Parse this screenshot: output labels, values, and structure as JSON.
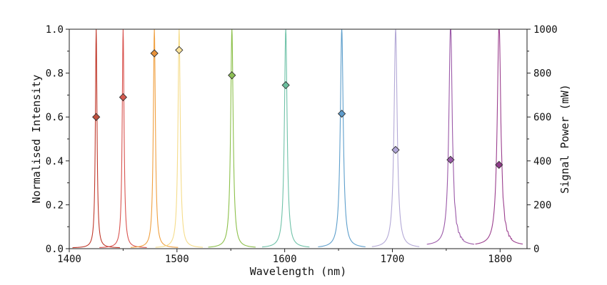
{
  "chart_data": {
    "type": "line",
    "title": "",
    "xlabel": "Wavelength (nm)",
    "ylabel": "Normalised Intensity",
    "y2label": "Signal Power (mW)",
    "xlim": [
      1400,
      1825
    ],
    "ylim": [
      0,
      1.0
    ],
    "y2lim": [
      0,
      1000
    ],
    "xticks": [
      1400,
      1500,
      1600,
      1700,
      1800
    ],
    "yticks": [
      "0.0",
      "0.2",
      "0.4",
      "0.6",
      "0.8",
      "1.0"
    ],
    "y2ticks": [
      "0",
      "200",
      "400",
      "600",
      "800",
      "1000"
    ],
    "grid": false,
    "legend": "none",
    "series": [
      {
        "peak_nm": 1425,
        "power_mW": 600,
        "color": "#c0392b",
        "marker": "#c0503e"
      },
      {
        "peak_nm": 1450,
        "power_mW": 690,
        "color": "#d9534f",
        "marker": "#d45a4f"
      },
      {
        "peak_nm": 1479,
        "power_mW": 890,
        "color": "#f0a040",
        "marker": "#e8923a"
      },
      {
        "peak_nm": 1502,
        "power_mW": 905,
        "color": "#f5dc8a",
        "marker": "#fbe39a"
      },
      {
        "peak_nm": 1551,
        "power_mW": 790,
        "color": "#8cc04a",
        "marker": "#8dbf55"
      },
      {
        "peak_nm": 1601,
        "power_mW": 745,
        "color": "#6fc2a8",
        "marker": "#6bbf9e"
      },
      {
        "peak_nm": 1653,
        "power_mW": 615,
        "color": "#5e9fcc",
        "marker": "#5e9ccc"
      },
      {
        "peak_nm": 1703,
        "power_mW": 450,
        "color": "#b3a8d6",
        "marker": "#b0a6d8"
      },
      {
        "peak_nm": 1754,
        "power_mW": 405,
        "color": "#9b59a8",
        "marker": "#9a5aa8"
      },
      {
        "peak_nm": 1799,
        "power_mW": 382,
        "color": "#9b3f8e",
        "marker": "#8e3a88"
      }
    ]
  }
}
